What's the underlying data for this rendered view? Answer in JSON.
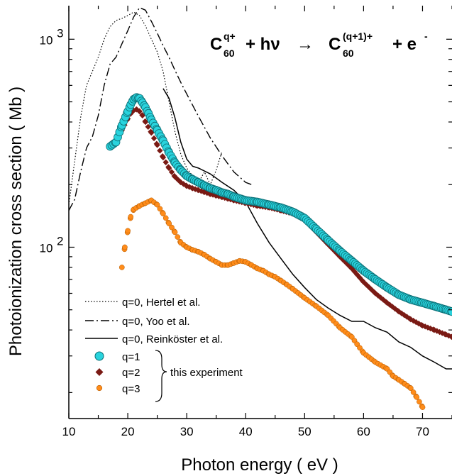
{
  "chart_data": {
    "type": "scatter",
    "title": "",
    "xlabel": "Photon energy  ( eV )",
    "ylabel": "Photoionization cross section  ( Mb )",
    "xlim": [
      10,
      75
    ],
    "ylim": [
      15,
      1450
    ],
    "yscale": "log",
    "grid": false,
    "legend_position": "bottom-left",
    "x_ticks": [
      10,
      20,
      30,
      40,
      50,
      60,
      70
    ],
    "y_tick_labels": [
      {
        "base": "10",
        "exp": "2",
        "value": 100
      },
      {
        "base": "10",
        "exp": "3",
        "value": 1000
      }
    ],
    "equation": {
      "lhs_base": "C",
      "lhs_sup": "q+",
      "lhs_sub": "60",
      "plus1": "+ hν",
      "arrow": "→",
      "rhs_base": "C",
      "rhs_sup": "(q+1)+",
      "rhs_sub": "60",
      "plus2": "+ e",
      "e_sup": "-"
    },
    "legend": {
      "group_label": "this experiment"
    },
    "series": [
      {
        "name": "q=0, Hertel et al.",
        "style": "dotted-line",
        "color": "#000000",
        "x": [
          10,
          11,
          12,
          13,
          14,
          15,
          16,
          17,
          18,
          19,
          20,
          21,
          22,
          23,
          24,
          25,
          26,
          27,
          28,
          29,
          30,
          31,
          32,
          33,
          34,
          35,
          36
        ],
        "y": [
          160,
          260,
          420,
          600,
          700,
          820,
          1000,
          1150,
          1230,
          1260,
          1300,
          1350,
          1300,
          1160,
          1000,
          870,
          700,
          500,
          360,
          280,
          240,
          220,
          205,
          230,
          200,
          235,
          290
        ]
      },
      {
        "name": "q=0, Yoo et al.",
        "style": "dashdot-line",
        "color": "#000000",
        "x": [
          10,
          11,
          12,
          13,
          14,
          15,
          16,
          17,
          18,
          19,
          20,
          21,
          22,
          23,
          24,
          25,
          26,
          27,
          28,
          29,
          30,
          32,
          34,
          36,
          38,
          40,
          41
        ],
        "y": [
          150,
          170,
          230,
          300,
          340,
          430,
          600,
          760,
          820,
          950,
          1100,
          1280,
          1420,
          1380,
          1220,
          1070,
          930,
          820,
          710,
          620,
          545,
          425,
          335,
          275,
          230,
          205,
          200
        ]
      },
      {
        "name": "q=0, Reinköster et al.",
        "style": "solid-line",
        "color": "#000000",
        "x": [
          26,
          27,
          28,
          29,
          30,
          31,
          32,
          34,
          36,
          38,
          40,
          42,
          44,
          46,
          48,
          50,
          52,
          54,
          56,
          58,
          60,
          62,
          64,
          66,
          68,
          70,
          72,
          74,
          75
        ],
        "y": [
          580,
          520,
          420,
          320,
          265,
          245,
          240,
          225,
          205,
          188,
          165,
          130,
          105,
          88,
          74,
          64,
          56,
          51,
          47,
          44,
          44,
          41,
          39,
          35,
          33,
          30,
          28,
          26,
          26
        ]
      },
      {
        "name": "q=1",
        "style": "cyan-circles",
        "color": "#29d3dd",
        "x": [
          17,
          18,
          19,
          20,
          20.5,
          21,
          21.5,
          22,
          22.5,
          23,
          23.5,
          24,
          25,
          26,
          27,
          28,
          29,
          30,
          31,
          32,
          33,
          34,
          35,
          36,
          37,
          38,
          40,
          42,
          44,
          46,
          48,
          50,
          52,
          54,
          56,
          58,
          60,
          62,
          64,
          66,
          68,
          70,
          72,
          74,
          75
        ],
        "y": [
          305,
          320,
          385,
          450,
          485,
          515,
          525,
          520,
          495,
          470,
          440,
          410,
          365,
          325,
          285,
          255,
          235,
          220,
          212,
          205,
          198,
          192,
          188,
          183,
          180,
          175,
          168,
          165,
          160,
          155,
          148,
          138,
          122,
          108,
          96,
          86,
          77,
          70,
          64,
          59,
          56,
          54,
          52,
          50,
          49
        ]
      },
      {
        "name": "q=2",
        "style": "maroon-diamonds",
        "color": "#7a1a14",
        "x": [
          18,
          19,
          20,
          20.5,
          21,
          21.5,
          22,
          22.5,
          23,
          24,
          25,
          26,
          27,
          28,
          29,
          30,
          31,
          32,
          33,
          34,
          35,
          36,
          37,
          38,
          40,
          42,
          44,
          46,
          48,
          50,
          52,
          54,
          56,
          58,
          60,
          62,
          64,
          66,
          68,
          70,
          72,
          74,
          75
        ],
        "y": [
          330,
          365,
          415,
          440,
          455,
          460,
          450,
          430,
          400,
          355,
          310,
          270,
          240,
          218,
          205,
          197,
          192,
          188,
          184,
          180,
          177,
          174,
          171,
          168,
          163,
          158,
          155,
          150,
          145,
          135,
          118,
          103,
          90,
          79,
          68,
          60,
          54,
          49,
          45,
          42,
          40,
          38,
          37
        ]
      },
      {
        "name": "q=3",
        "style": "orange-dots",
        "color": "#ff8c1a",
        "x": [
          19,
          19.5,
          20,
          20.5,
          21,
          22,
          23,
          24,
          25,
          26,
          27,
          28,
          29,
          30,
          31,
          32,
          33,
          34,
          35,
          36,
          37,
          38,
          39,
          40,
          41,
          42,
          43,
          44,
          45,
          46,
          47,
          48,
          50,
          52,
          54,
          56,
          58,
          60,
          62,
          64,
          65,
          66,
          67,
          68,
          69,
          70
        ],
        "y": [
          80,
          100,
          120,
          140,
          152,
          158,
          163,
          168,
          160,
          145,
          130,
          118,
          105,
          100,
          97,
          95,
          92,
          88,
          85,
          82,
          82,
          84,
          86,
          85,
          82,
          79,
          77,
          74,
          72,
          69,
          66,
          63,
          57,
          52,
          47,
          41,
          37,
          31,
          28,
          26,
          24,
          23,
          22,
          21,
          19,
          17
        ]
      }
    ]
  }
}
